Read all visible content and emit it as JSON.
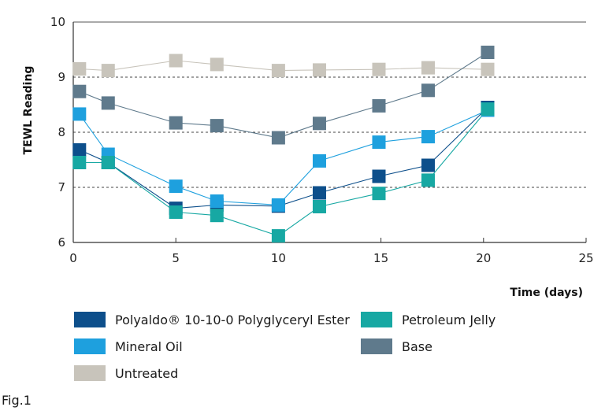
{
  "chart_data": {
    "type": "line",
    "ylabel": "TEWL Reading",
    "xlabel": "Time (days)",
    "xlim": [
      0,
      25
    ],
    "ylim": [
      6,
      10
    ],
    "x_ticks": [
      "0",
      "5",
      "10",
      "15",
      "20",
      "25"
    ],
    "y_ticks": [
      "6",
      "7",
      "8",
      "9",
      "10"
    ],
    "dashed_gridlines_at": [
      7,
      8,
      9
    ],
    "legend_position": "bottom",
    "series": [
      {
        "name": "Polyaldo® 10-10-0 Polyglyceryl Ester",
        "color": "#0d4f8b",
        "x": [
          0.3,
          1.7,
          5,
          7,
          10,
          12,
          14.9,
          17.3,
          20.2
        ],
        "y": [
          7.68,
          7.45,
          6.62,
          6.68,
          6.66,
          6.9,
          7.2,
          7.4,
          8.45
        ]
      },
      {
        "name": "Mineral Oil",
        "color": "#1ea0de",
        "x": [
          0.3,
          1.7,
          5,
          7,
          10,
          12,
          14.9,
          17.3,
          20.2
        ],
        "y": [
          8.33,
          7.6,
          7.02,
          6.75,
          6.68,
          7.48,
          7.82,
          7.92,
          8.4
        ]
      },
      {
        "name": "Untreated",
        "color": "#c8c4bb",
        "x": [
          0.3,
          1.7,
          5,
          7,
          10,
          12,
          14.9,
          17.3,
          20.2
        ],
        "y": [
          9.15,
          9.12,
          9.3,
          9.23,
          9.12,
          9.13,
          9.14,
          9.17,
          9.14
        ]
      },
      {
        "name": "Petroleum Jelly",
        "color": "#17a8a3",
        "x": [
          0.3,
          1.7,
          5,
          7,
          10,
          12,
          14.9,
          17.3,
          20.2
        ],
        "y": [
          7.45,
          7.45,
          6.55,
          6.49,
          6.12,
          6.65,
          6.89,
          7.13,
          8.42
        ]
      },
      {
        "name": "Base",
        "color": "#5f7a8c",
        "x": [
          0.3,
          1.7,
          5,
          7,
          10,
          12,
          14.9,
          17.3,
          20.2
        ],
        "y": [
          8.74,
          8.53,
          8.17,
          8.12,
          7.9,
          8.16,
          8.48,
          8.76,
          9.45
        ]
      }
    ]
  },
  "caption": "Fig.1"
}
